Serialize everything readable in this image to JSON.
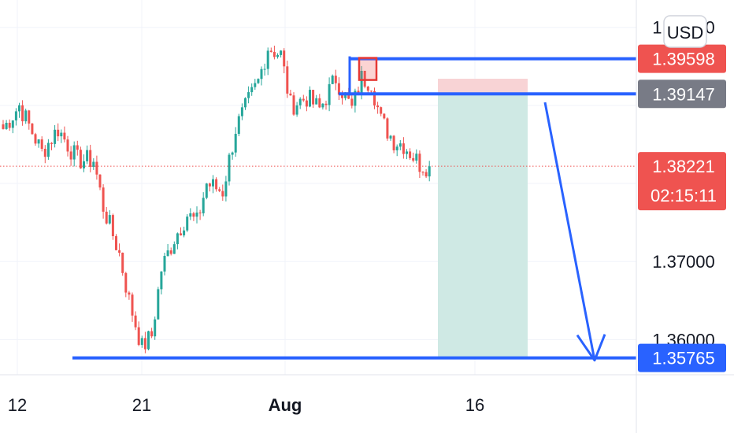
{
  "currency": "USD",
  "colors": {
    "up": "#26a69a",
    "down": "#ef5350",
    "line": "#2962ff",
    "grid": "#f0f3fa",
    "price_line": "#ef5350",
    "target_zone": "#cfe9e4",
    "stop_zone": "#f8d3d5",
    "gray_label": "#787b86",
    "blue_label": "#2962ff",
    "red_label": "#ef5350"
  },
  "chart_data": {
    "type": "candlestick",
    "ylim": [
      1.3555,
      1.4035
    ],
    "y_ticks": [
      {
        "value": 1.4,
        "label": "1.40000"
      },
      {
        "value": 1.39,
        "label": ""
      },
      {
        "value": 1.38,
        "label": ""
      },
      {
        "value": 1.37,
        "label": "1.37000"
      },
      {
        "value": 1.36,
        "label": "1.36000"
      }
    ],
    "x_ticks": [
      {
        "label": "12",
        "bold": false
      },
      {
        "label": "21",
        "bold": false
      },
      {
        "label": "Aug",
        "bold": true
      },
      {
        "label": "16",
        "bold": false
      }
    ],
    "price_labels": [
      {
        "value": 1.39598,
        "label": "1.39598",
        "color": "red"
      },
      {
        "value": 1.39147,
        "label": "1.39147",
        "color": "gray"
      },
      {
        "value": 1.38221,
        "label": "1.38221",
        "sub": "02:15:11",
        "color": "red"
      },
      {
        "value": 1.35765,
        "label": "1.35765",
        "color": "blue"
      }
    ],
    "current_price": 1.38221,
    "horizontal_lines": [
      1.39598,
      1.39147,
      1.35765
    ],
    "anchors": [
      {
        "i": 0,
        "v": 1.387
      },
      {
        "i": 5,
        "v": 1.39
      },
      {
        "i": 12,
        "v": 1.384
      },
      {
        "i": 17,
        "v": 1.387
      },
      {
        "i": 23,
        "v": 1.383
      },
      {
        "i": 28,
        "v": 1.383
      },
      {
        "i": 31,
        "v": 1.377
      },
      {
        "i": 36,
        "v": 1.371
      },
      {
        "i": 39,
        "v": 1.365
      },
      {
        "i": 43,
        "v": 1.359
      },
      {
        "i": 46,
        "v": 1.3605
      },
      {
        "i": 49,
        "v": 1.369
      },
      {
        "i": 53,
        "v": 1.373
      },
      {
        "i": 57,
        "v": 1.376
      },
      {
        "i": 60,
        "v": 1.375
      },
      {
        "i": 63,
        "v": 1.38
      },
      {
        "i": 68,
        "v": 1.379
      },
      {
        "i": 72,
        "v": 1.387
      },
      {
        "i": 76,
        "v": 1.3905
      },
      {
        "i": 79,
        "v": 1.393
      },
      {
        "i": 82,
        "v": 1.3975
      },
      {
        "i": 86,
        "v": 1.3965
      },
      {
        "i": 89,
        "v": 1.39
      },
      {
        "i": 94,
        "v": 1.391
      },
      {
        "i": 98,
        "v": 1.3895
      },
      {
        "i": 103,
        "v": 1.3935
      },
      {
        "i": 108,
        "v": 1.3895
      },
      {
        "i": 111,
        "v": 1.3935
      },
      {
        "i": 114,
        "v": 1.393
      },
      {
        "i": 117,
        "v": 1.388
      },
      {
        "i": 121,
        "v": 1.3855
      },
      {
        "i": 124,
        "v": 1.385
      },
      {
        "i": 129,
        "v": 1.3825
      },
      {
        "i": 132,
        "v": 1.3822
      }
    ],
    "candle_count": 133,
    "entry": 1.39147,
    "stop": 1.39598,
    "target": 1.35765
  }
}
